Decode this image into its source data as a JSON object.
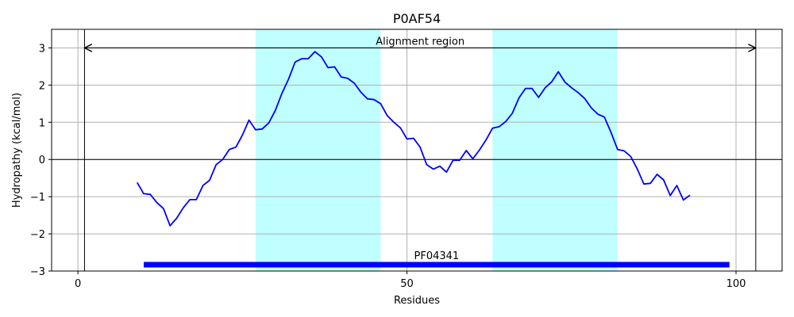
{
  "chart_data": {
    "type": "line",
    "title": "P0AF54",
    "xlabel": "Residues",
    "ylabel": "Hydropathy (kcal/mol)",
    "xlim": [
      -4,
      107
    ],
    "ylim": [
      -3,
      3.5
    ],
    "xticks": [
      0,
      50,
      100
    ],
    "yticks": [
      -3,
      -2,
      -1,
      0,
      1,
      2,
      3
    ],
    "xtick_labels": [
      "0",
      "50",
      "100"
    ],
    "ytick_labels": [
      "−3",
      "−2",
      "−1",
      "0",
      "1",
      "2",
      "3"
    ],
    "grid": true,
    "series": [
      {
        "color": "#0000ff",
        "x": [
          9,
          10,
          11,
          12,
          13,
          14,
          15,
          16,
          17,
          18,
          19,
          20,
          21,
          22,
          23,
          24,
          25,
          26,
          27,
          28,
          29,
          30,
          31,
          32,
          33,
          34,
          35,
          36,
          37,
          38,
          39,
          40,
          41,
          42,
          43,
          44,
          45,
          46,
          47,
          48,
          49,
          50,
          51,
          52,
          53,
          54,
          55,
          56,
          57,
          58,
          59,
          60,
          61,
          62,
          63,
          64,
          65,
          66,
          67,
          68,
          69,
          70,
          71,
          72,
          73,
          74,
          75,
          76,
          77,
          78,
          79,
          80,
          81,
          82,
          83,
          84,
          85,
          86,
          87,
          88,
          89,
          90,
          91,
          92,
          93
        ],
        "y": [
          -0.62,
          -0.92,
          -0.94,
          -1.16,
          -1.32,
          -1.78,
          -1.58,
          -1.3,
          -1.08,
          -1.08,
          -0.7,
          -0.56,
          -0.14,
          0.0,
          0.27,
          0.33,
          0.66,
          1.06,
          0.8,
          0.82,
          0.98,
          1.32,
          1.78,
          2.16,
          2.62,
          2.71,
          2.71,
          2.9,
          2.76,
          2.47,
          2.49,
          2.22,
          2.18,
          2.05,
          1.81,
          1.63,
          1.61,
          1.5,
          1.18,
          1.0,
          0.85,
          0.55,
          0.57,
          0.33,
          -0.14,
          -0.26,
          -0.18,
          -0.34,
          -0.02,
          -0.02,
          0.24,
          0.02,
          0.25,
          0.52,
          0.84,
          0.88,
          1.02,
          1.24,
          1.65,
          1.91,
          1.91,
          1.67,
          1.93,
          2.09,
          2.36,
          2.08,
          1.93,
          1.8,
          1.64,
          1.39,
          1.22,
          1.14,
          0.73,
          0.27,
          0.23,
          0.08,
          -0.26,
          -0.66,
          -0.64,
          -0.4,
          -0.55,
          -0.97,
          -0.7,
          -1.09,
          -0.96
        ]
      }
    ],
    "shaded_regions": [
      {
        "x0": 27,
        "x1": 46,
        "color": "#c0ffff"
      },
      {
        "x0": 63,
        "x1": 82,
        "color": "#c0ffff"
      }
    ],
    "vertical_lines": [
      1,
      103
    ],
    "zero_line": 0,
    "alignment_arrow": {
      "x0": 1,
      "x1": 103,
      "y": 3.0,
      "label": "Alignment region"
    },
    "domain_bar": {
      "x0": 10,
      "x1": 99,
      "y": -2.83,
      "label": "PF04341",
      "color": "#0000ff"
    }
  }
}
